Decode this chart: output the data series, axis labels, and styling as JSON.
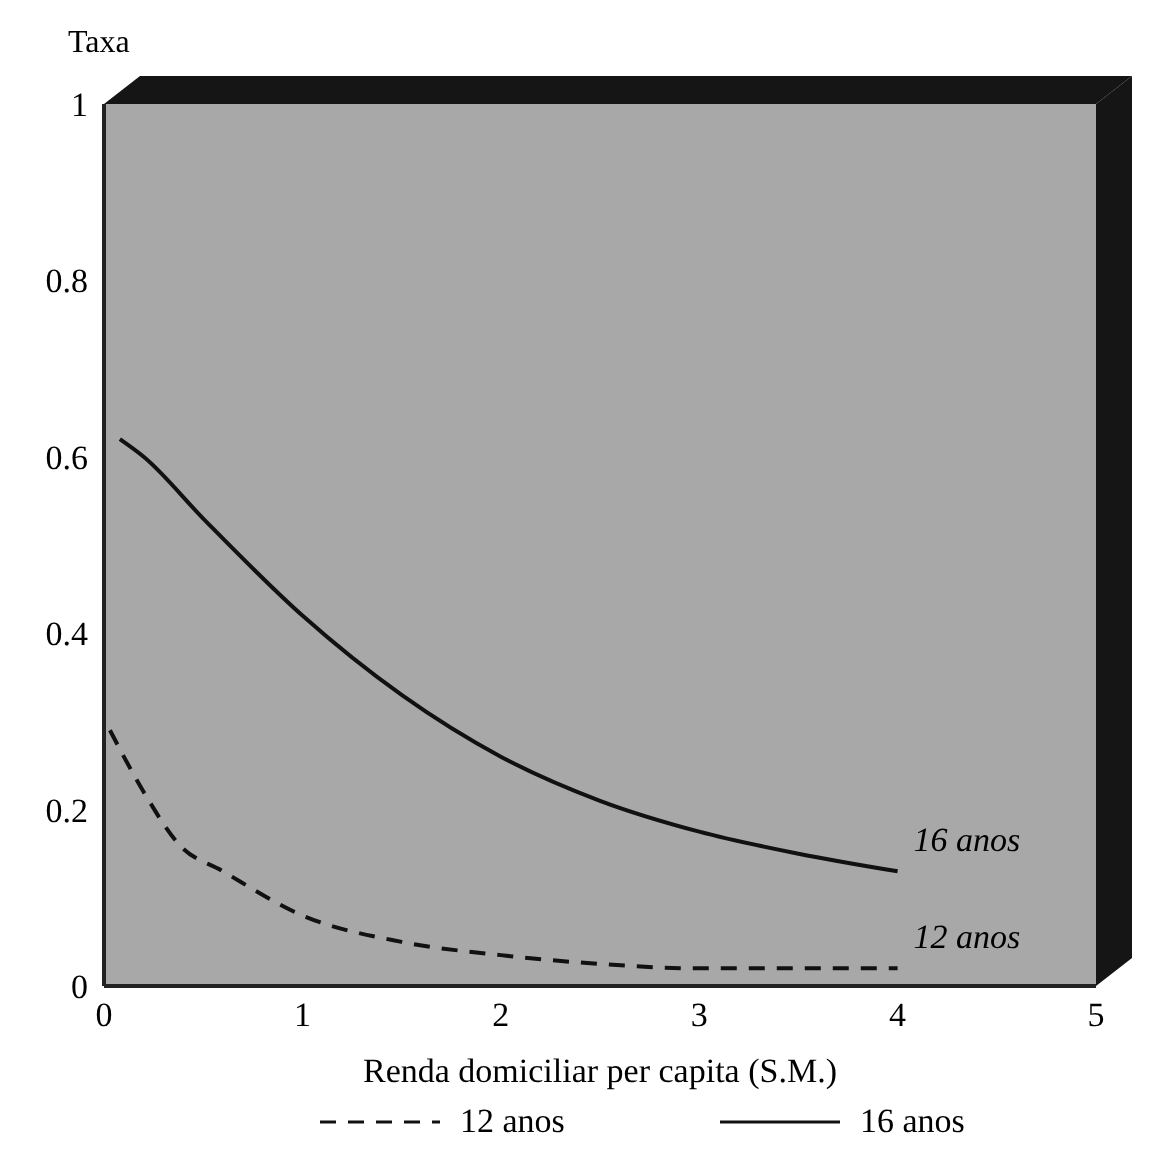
{
  "chart_data": {
    "type": "line",
    "xlabel": "Renda domiciliar per capita (S.M.)",
    "ylabel": "Taxa",
    "xlim": [
      0,
      5
    ],
    "xticks": [
      0,
      1,
      2,
      3,
      4,
      5
    ],
    "ylim": [
      0,
      1
    ],
    "yticks": [
      0,
      0.2,
      0.4,
      0.6,
      0.8,
      1
    ],
    "grid": false,
    "legend": "bottom",
    "series": [
      {
        "name": "12 anos",
        "color": "#111111",
        "line_style": "dashed",
        "x": [
          0.03,
          0.2,
          0.38,
          0.6,
          1,
          1.5,
          2,
          2.5,
          3,
          3.5,
          4
        ],
        "values": [
          0.29,
          0.22,
          0.16,
          0.13,
          0.08,
          0.05,
          0.035,
          0.025,
          0.02,
          0.02,
          0.02
        ]
      },
      {
        "name": "16 anos",
        "color": "#111111",
        "line_style": "solid",
        "x": [
          0.08,
          0.2,
          0.5,
          1,
          1.5,
          2,
          2.5,
          3,
          3.5,
          4
        ],
        "values": [
          0.62,
          0.6,
          0.53,
          0.42,
          0.33,
          0.26,
          0.21,
          0.175,
          0.15,
          0.13
        ]
      }
    ]
  }
}
